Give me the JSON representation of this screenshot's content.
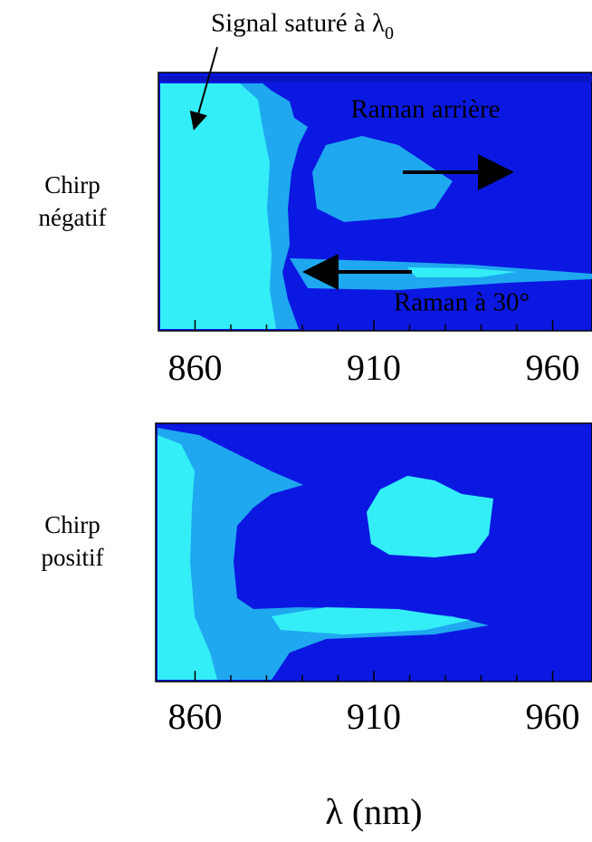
{
  "chart_data": [
    {
      "type": "heatmap",
      "row_label": [
        "Chirp",
        "négatif"
      ],
      "xlim": [
        849,
        971
      ],
      "xticks": [
        860,
        910,
        960
      ],
      "minor_xticks": [
        870,
        880,
        890,
        900,
        920,
        930,
        940,
        950
      ],
      "annotations": [
        {
          "text": "Signal saturé à λ",
          "subscript": "0"
        },
        {
          "text": "Raman arrière"
        },
        {
          "text": "Raman à 30°"
        }
      ]
    },
    {
      "type": "heatmap",
      "row_label": [
        "Chirp",
        "positif"
      ],
      "xlim": [
        849,
        971
      ],
      "xticks": [
        860,
        910,
        960
      ],
      "minor_xticks": [
        870,
        880,
        890,
        900,
        920,
        930,
        940,
        950
      ],
      "xlabel": "λ (nm)"
    }
  ]
}
